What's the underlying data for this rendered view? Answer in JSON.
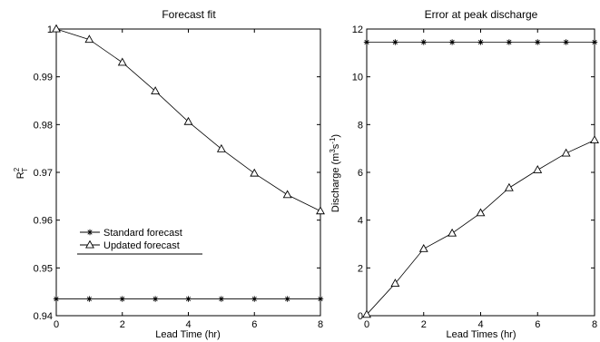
{
  "chart_data": [
    {
      "type": "line",
      "title": "Forecast fit",
      "xlabel": "Lead Time (hr)",
      "ylabel": "R",
      "ylabel_sup": "2",
      "ylabel_sub": "T",
      "xlim": [
        0,
        8
      ],
      "ylim": [
        0.94,
        1.0
      ],
      "xticks": [
        "0",
        "2",
        "4",
        "6",
        "8"
      ],
      "yticks": [
        "0.94",
        "0.95",
        "0.96",
        "0.97",
        "0.98",
        "0.99",
        "1"
      ],
      "legend_placement": "lower-left",
      "series": [
        {
          "name": "Standard forecast",
          "marker": "star",
          "x": [
            0,
            1,
            2,
            3,
            4,
            5,
            6,
            7,
            8
          ],
          "values": [
            0.9435,
            0.9435,
            0.9435,
            0.9435,
            0.9435,
            0.9435,
            0.9435,
            0.9435,
            0.9435
          ]
        },
        {
          "name": "Updated forecast",
          "marker": "triangle",
          "x": [
            0,
            1,
            2,
            3,
            4,
            5,
            6,
            7,
            8
          ],
          "values": [
            1.0,
            0.9978,
            0.993,
            0.987,
            0.9806,
            0.9749,
            0.9698,
            0.9653,
            0.9619
          ]
        }
      ]
    },
    {
      "type": "line",
      "title": "Error at peak discharge",
      "xlabel": "Lead Times (hr)",
      "ylabel": "Discharge (m",
      "ylabel_sup1": "3",
      "ylabel_mid": "s",
      "ylabel_sup2": "-1",
      "ylabel_end": ")",
      "xlim": [
        0,
        8
      ],
      "ylim": [
        0,
        12
      ],
      "xticks": [
        "0",
        "2",
        "4",
        "6",
        "8"
      ],
      "yticks": [
        "0",
        "2",
        "4",
        "6",
        "8",
        "10",
        "12"
      ],
      "series": [
        {
          "marker": "star",
          "x": [
            0,
            1,
            2,
            3,
            4,
            5,
            6,
            7,
            8
          ],
          "values": [
            11.45,
            11.45,
            11.45,
            11.45,
            11.45,
            11.45,
            11.45,
            11.45,
            11.45
          ]
        },
        {
          "marker": "triangle",
          "x": [
            0,
            1,
            2,
            3,
            4,
            5,
            6,
            7,
            8
          ],
          "values": [
            0.05,
            1.35,
            2.8,
            3.45,
            4.3,
            5.35,
            6.1,
            6.8,
            7.35
          ]
        }
      ]
    }
  ]
}
